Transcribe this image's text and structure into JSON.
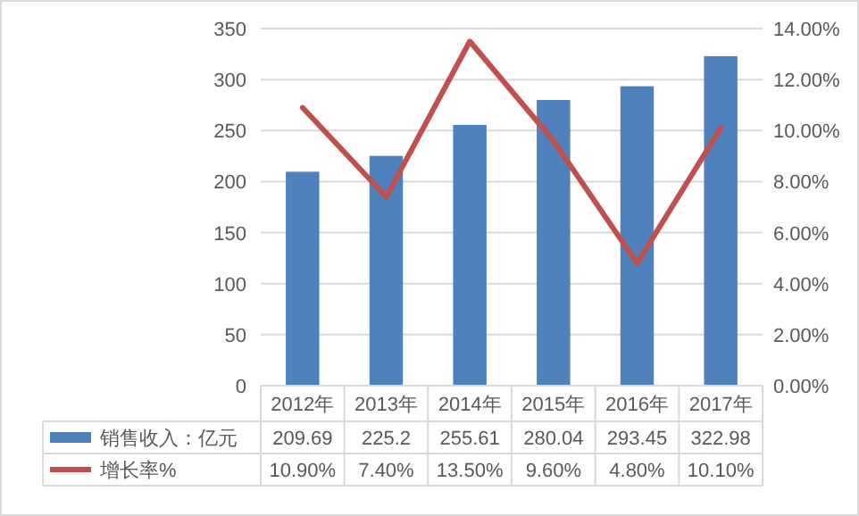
{
  "chart_data": {
    "type": "bar",
    "categories": [
      "2012年",
      "2013年",
      "2014年",
      "2015年",
      "2016年",
      "2017年"
    ],
    "series": [
      {
        "name": "销售收入：亿元",
        "color": "#4f81bd",
        "values": [
          209.69,
          225.2,
          255.61,
          280.04,
          293.45,
          322.98
        ],
        "value_labels": [
          "209.69",
          "225.2",
          "255.61",
          "280.04",
          "293.45",
          "322.98"
        ]
      },
      {
        "name": "增长率%",
        "type": "line",
        "axis": "y2",
        "color": "#c0504d",
        "values": [
          10.9,
          7.4,
          13.5,
          9.6,
          4.8,
          10.1
        ],
        "value_labels": [
          "10.90%",
          "7.40%",
          "13.50%",
          "9.60%",
          "4.80%",
          "10.10%"
        ]
      }
    ],
    "ylim": [
      0,
      350
    ],
    "yticks": [
      0,
      50,
      100,
      150,
      200,
      250,
      300,
      350
    ],
    "y2lim": [
      0,
      14
    ],
    "y2ticks": [
      {
        "value": 0,
        "label": "0.00%"
      },
      {
        "value": 2,
        "label": "2.00%"
      },
      {
        "value": 4,
        "label": "4.00%"
      },
      {
        "value": 6,
        "label": "6.00%"
      },
      {
        "value": 8,
        "label": "8.00%"
      },
      {
        "value": 10,
        "label": "10.00%"
      },
      {
        "value": 12,
        "label": "12.00%"
      },
      {
        "value": 14,
        "label": "14.00%"
      }
    ],
    "grid": "y",
    "legend": "bottom"
  }
}
